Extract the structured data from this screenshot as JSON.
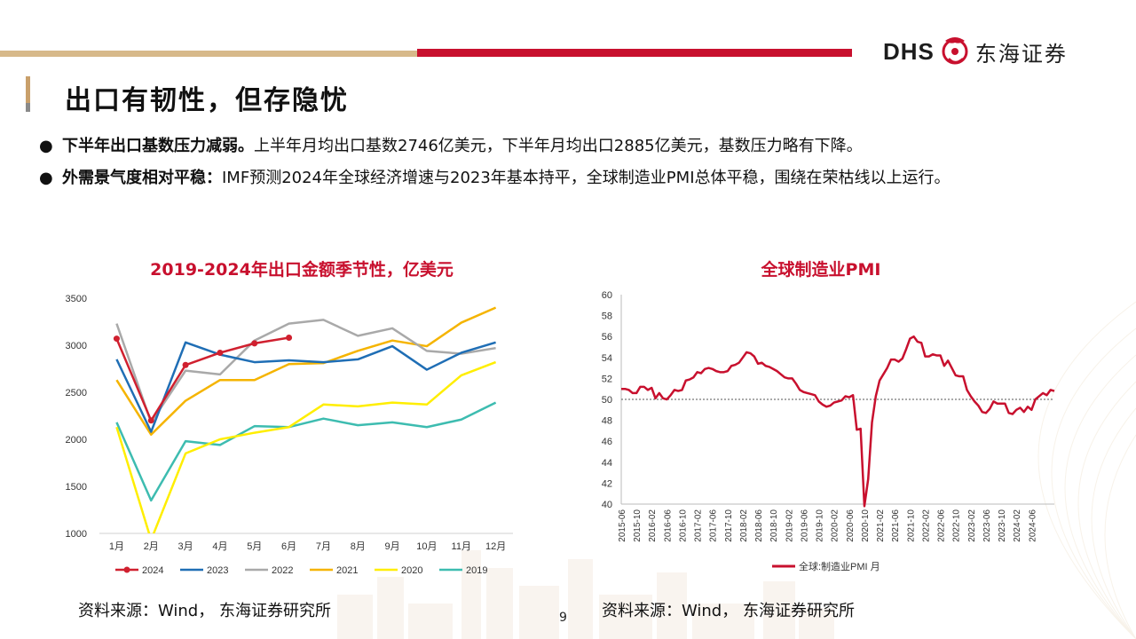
{
  "header": {
    "logo_latin": "DHS",
    "logo_chinese": "东海证券",
    "accent_red": "#c8102e",
    "accent_gold": "#d7b98a"
  },
  "page_title": "出口有韧性，但存隐忧",
  "bullets": [
    {
      "bold": "下半年出口基数压力减弱。",
      "text": "上半年月均出口基数2746亿美元，下半年月均出口2885亿美元，基数压力略有下降。"
    },
    {
      "bold": "外需景气度相对平稳：",
      "text": "IMF预测2024年全球经济增速与2023年基本持平，全球制造业PMI总体平稳，围绕在荣枯线以上运行。"
    }
  ],
  "bullet_symbol": "●",
  "source_left": "资料来源：Wind， 东海证券研究所",
  "source_right": "资料来源：Wind， 东海证券研究所",
  "page_number": "9",
  "chart_data": [
    {
      "type": "line",
      "title": "2019-2024年出口金额季节性，亿美元",
      "categories": [
        "1月",
        "2月",
        "3月",
        "4月",
        "5月",
        "6月",
        "7月",
        "8月",
        "9月",
        "10月",
        "11月",
        "12月"
      ],
      "ylim": [
        1000,
        3500
      ],
      "yticks": [
        1000,
        1500,
        2000,
        2500,
        3000,
        3500
      ],
      "grid": false,
      "legend_position": "bottom",
      "series": [
        {
          "name": "2024",
          "color": "#d0202f",
          "markers": true,
          "values": [
            3070,
            2200,
            2790,
            2920,
            3020,
            3080,
            null,
            null,
            null,
            null,
            null,
            null
          ]
        },
        {
          "name": "2023",
          "color": "#1f6eb5",
          "markers": false,
          "values": [
            2850,
            2080,
            3030,
            2900,
            2820,
            2840,
            2820,
            2850,
            2990,
            2740,
            2920,
            3030
          ]
        },
        {
          "name": "2022",
          "color": "#a9a9a9",
          "markers": false,
          "values": [
            3230,
            2180,
            2730,
            2690,
            3050,
            3230,
            3270,
            3100,
            3180,
            2940,
            2910,
            2970
          ]
        },
        {
          "name": "2021",
          "color": "#f5b400",
          "markers": false,
          "values": [
            2630,
            2050,
            2410,
            2630,
            2630,
            2800,
            2810,
            2940,
            3050,
            2990,
            3240,
            3400
          ]
        },
        {
          "name": "2020",
          "color": "#ffee00",
          "markers": false,
          "values": [
            2130,
            930,
            1850,
            2000,
            2070,
            2130,
            2370,
            2350,
            2390,
            2370,
            2680,
            2820
          ]
        },
        {
          "name": "2019",
          "color": "#3dbcb0",
          "markers": false,
          "values": [
            2180,
            1350,
            1980,
            1940,
            2140,
            2130,
            2220,
            2150,
            2180,
            2130,
            2210,
            2390
          ]
        }
      ]
    },
    {
      "type": "line",
      "title": "全球制造业PMI",
      "ylim": [
        40,
        60
      ],
      "yticks": [
        40,
        42,
        44,
        46,
        48,
        50,
        52,
        54,
        56,
        58,
        60
      ],
      "reference_line": 50,
      "grid": false,
      "legend_position": "bottom",
      "x_start": "2015-06",
      "x_tick_labels": [
        "2015-06",
        "2015-10",
        "2016-02",
        "2016-06",
        "2016-10",
        "2017-02",
        "2017-06",
        "2017-10",
        "2018-02",
        "2018-06",
        "2018-10",
        "2019-02",
        "2019-06",
        "2019-10",
        "2020-02",
        "2020-06",
        "2020-10",
        "2021-02",
        "2021-06",
        "2021-10",
        "2022-02",
        "2022-06",
        "2022-10",
        "2023-02",
        "2023-06",
        "2023-10",
        "2024-02",
        "2024-06"
      ],
      "series": [
        {
          "name": "全球:制造业PMI 月",
          "color": "#c8102e",
          "values": [
            51.0,
            51.0,
            50.9,
            50.6,
            50.6,
            51.2,
            51.2,
            50.9,
            51.1,
            50.1,
            50.6,
            50.1,
            50.0,
            50.4,
            50.9,
            50.8,
            50.9,
            51.8,
            51.9,
            52.1,
            52.6,
            52.5,
            52.9,
            53.0,
            52.9,
            52.7,
            52.6,
            52.6,
            52.7,
            53.2,
            53.3,
            53.5,
            54.0,
            54.5,
            54.4,
            54.1,
            53.4,
            53.5,
            53.2,
            53.1,
            52.9,
            52.7,
            52.4,
            52.1,
            52.0,
            52.0,
            51.5,
            50.9,
            50.7,
            50.6,
            50.5,
            50.4,
            49.8,
            49.5,
            49.3,
            49.4,
            49.7,
            49.8,
            49.9,
            50.3,
            50.2,
            50.4,
            47.1,
            47.2,
            39.8,
            42.4,
            47.8,
            50.3,
            51.8,
            52.4,
            53.0,
            53.8,
            53.8,
            53.6,
            53.9,
            54.8,
            55.8,
            56.0,
            55.5,
            55.4,
            54.1,
            54.1,
            54.3,
            54.2,
            54.2,
            53.2,
            53.7,
            53.0,
            52.3,
            52.2,
            52.2,
            50.9,
            50.3,
            49.8,
            49.4,
            48.8,
            48.7,
            49.1,
            49.8,
            49.6,
            49.6,
            49.6,
            48.7,
            48.6,
            49.0,
            49.2,
            48.8,
            49.3,
            49.0,
            50.0,
            50.3,
            50.6,
            50.4,
            50.9,
            50.8
          ]
        }
      ]
    }
  ]
}
